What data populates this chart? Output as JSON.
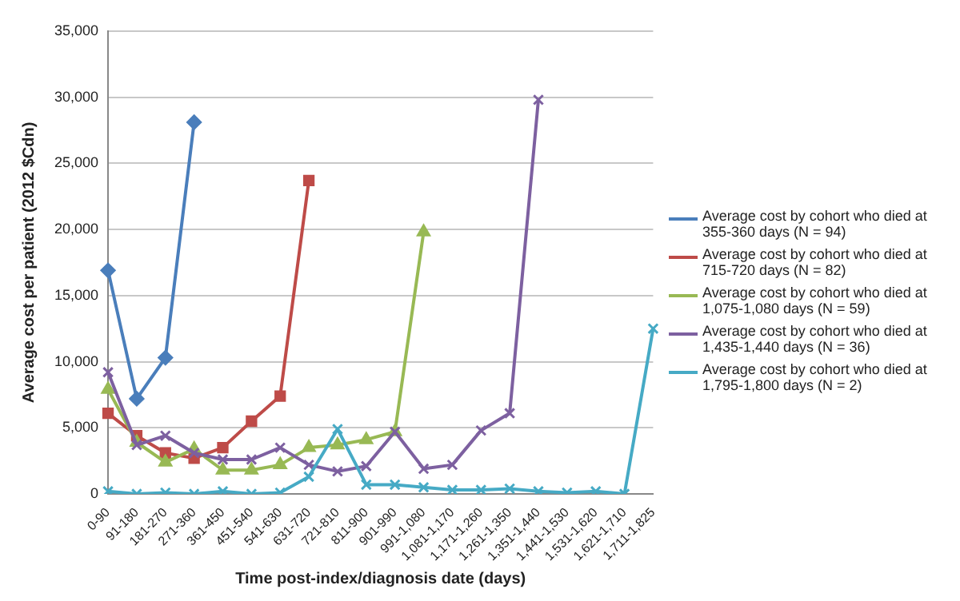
{
  "chart_data": {
    "type": "line",
    "xlabel": "Time post-index/diagnosis date (days)",
    "ylabel": "Average cost per patient (2012 $Cdn)",
    "categories": [
      "0-90",
      "91-180",
      "181-270",
      "271-360",
      "361-450",
      "451-540",
      "541-630",
      "631-720",
      "721-810",
      "811-900",
      "901-990",
      "991-1,080",
      "1,081-1,170",
      "1,171-1,260",
      "1,261-1,350",
      "1,351-1,440",
      "1,441-1,530",
      "1,531-1,620",
      "1,621-1,710",
      "1,711-1,825"
    ],
    "series": [
      {
        "name": "Average cost by cohort who died at 355-360 days (N = 94)",
        "color": "#4a7ebb",
        "marker": "diamond",
        "values": [
          16900,
          7200,
          10300,
          28100,
          null,
          null,
          null,
          null,
          null,
          null,
          null,
          null,
          null,
          null,
          null,
          null,
          null,
          null,
          null,
          null
        ]
      },
      {
        "name": "Average cost by cohort who died at 715-720 days (N = 82)",
        "color": "#be4b48",
        "marker": "square",
        "values": [
          6100,
          4400,
          3100,
          2700,
          3500,
          5500,
          7400,
          23700,
          null,
          null,
          null,
          null,
          null,
          null,
          null,
          null,
          null,
          null,
          null,
          null
        ]
      },
      {
        "name": "Average cost by cohort who died at 1,075-1,080 days (N = 59)",
        "color": "#98b954",
        "marker": "triangle",
        "values": [
          7900,
          3900,
          2400,
          3400,
          1800,
          1800,
          2200,
          3500,
          3700,
          4100,
          4700,
          19800,
          null,
          null,
          null,
          null,
          null,
          null,
          null,
          null
        ]
      },
      {
        "name": "Average cost by cohort who died at 1,435-1,440 days (N = 36)",
        "color": "#7d60a0",
        "marker": "cross",
        "values": [
          9200,
          3700,
          4400,
          3100,
          2600,
          2600,
          3500,
          2200,
          1700,
          2100,
          4700,
          1900,
          2200,
          4800,
          6100,
          29800,
          null,
          null,
          null,
          null
        ]
      },
      {
        "name": "Average cost by cohort who died at 1,795-1,800 days (N = 2)",
        "color": "#46aac5",
        "marker": "cross",
        "values": [
          200,
          0,
          100,
          0,
          200,
          0,
          100,
          1300,
          4900,
          700,
          700,
          500,
          300,
          300,
          400,
          200,
          100,
          200,
          0,
          12500
        ]
      }
    ],
    "ylim": [
      0,
      35000
    ],
    "yticks": [
      0,
      {
        "value": 5000,
        "label": "5,000"
      },
      {
        "value": 10000,
        "label": "10,000"
      },
      {
        "value": 15000,
        "label": "15,000"
      },
      {
        "value": 20000,
        "label": "20,000"
      },
      {
        "value": 25000,
        "label": "25,000"
      },
      {
        "value": 30000,
        "label": "30,000"
      },
      {
        "value": 35000,
        "label": "35,000"
      }
    ],
    "grid": "y",
    "legend": "right"
  }
}
